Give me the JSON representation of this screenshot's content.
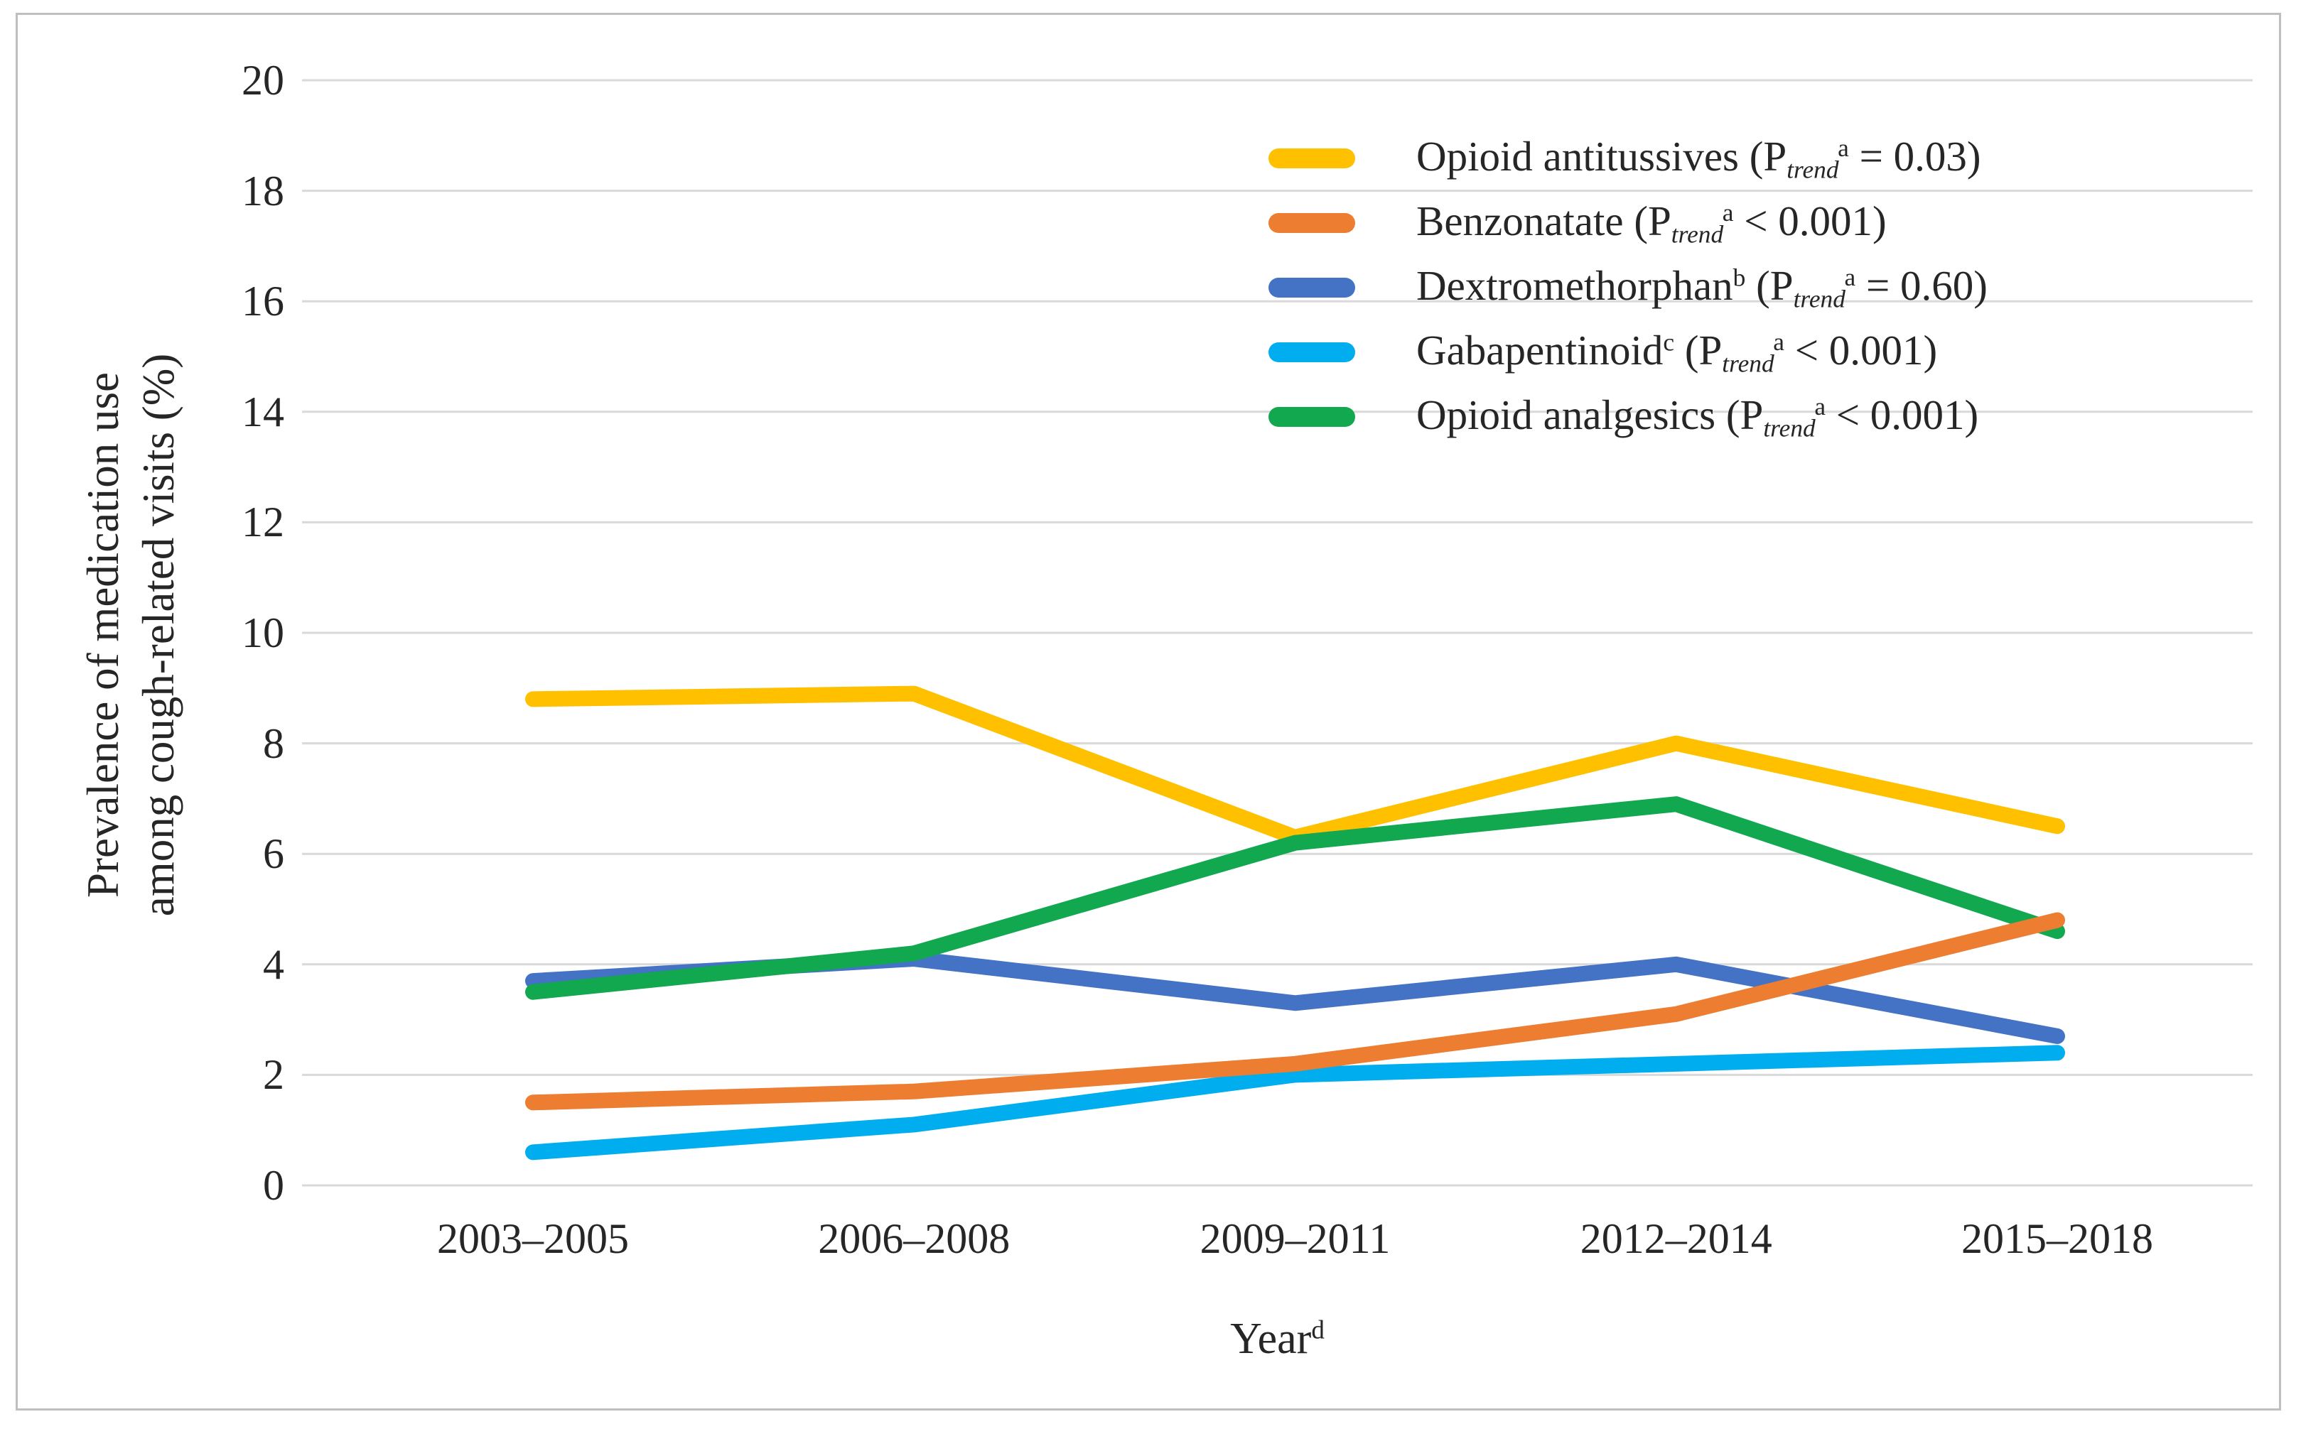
{
  "chart_data": {
    "type": "line",
    "title": "",
    "categories": [
      "2003–2005",
      "2006–2008",
      "2009–2011",
      "2012–2014",
      "2015–2018"
    ],
    "series": [
      {
        "name": "Opioid antitussives",
        "name_sup": "",
        "p_trend": "= 0.03",
        "color": "#FFC000",
        "values": [
          8.8,
          8.9,
          6.3,
          8.0,
          6.5
        ]
      },
      {
        "name": "Benzonatate",
        "name_sup": "",
        "p_trend": "< 0.001",
        "color": "#ED7D31",
        "values": [
          1.5,
          1.7,
          2.2,
          3.1,
          4.8
        ]
      },
      {
        "name": "Dextromethorphan",
        "name_sup": "b",
        "p_trend": "= 0.60",
        "color": "#4472C4",
        "values": [
          3.7,
          4.1,
          3.3,
          4.0,
          2.7
        ]
      },
      {
        "name": "Gabapentinoid",
        "name_sup": "c",
        "p_trend": "< 0.001",
        "color": "#00AEEF",
        "values": [
          0.6,
          1.1,
          2.0,
          2.2,
          2.4
        ]
      },
      {
        "name": "Opioid analgesics",
        "name_sup": "",
        "p_trend": "< 0.001",
        "color": "#12A84F",
        "values": [
          3.5,
          4.2,
          6.2,
          6.9,
          4.6
        ]
      }
    ],
    "p_label": {
      "prefix": " (P",
      "sub": "trend",
      "sup": "a",
      "suffix": ")"
    },
    "xlabel": "Year",
    "xlabel_sup": "d",
    "ylabel_line1": "Prevalence of medication use",
    "ylabel_line2": "among cough-related visits (%)",
    "ylim": [
      0,
      20
    ],
    "ytick_step": 2,
    "ytick_labels": [
      "0",
      "2",
      "4",
      "6",
      "8",
      "10",
      "12",
      "14",
      "16",
      "18",
      "20"
    ],
    "grid": true,
    "legend_position": "top-right",
    "draw_order": [
      0,
      2,
      3,
      4,
      1
    ]
  },
  "colors": {
    "grid": "#D9D9D9",
    "frame_border": "#BFBFBF",
    "text": "#262626"
  }
}
